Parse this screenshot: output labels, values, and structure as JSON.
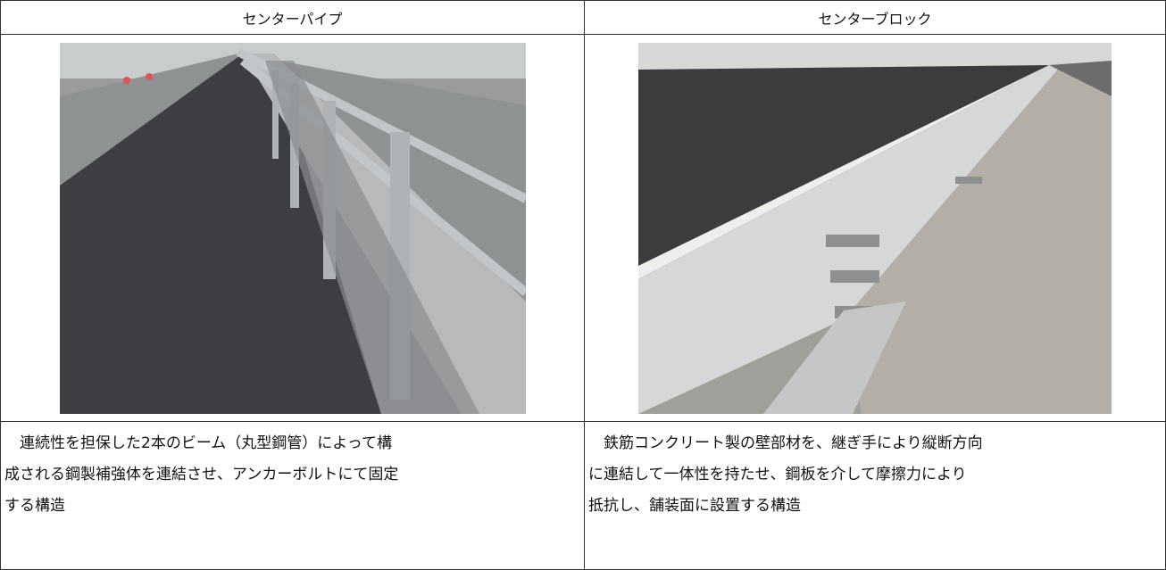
{
  "table": {
    "headers": [
      "センターパイプ",
      "センターブロック"
    ],
    "descriptions": [
      [
        "連続性を担保した2本のビーム（丸型鋼管）によって構",
        "成される鋼製補強体を連結させ、アンカーボルトにて固定",
        "する構造"
      ],
      [
        "鉄筋コンクリート製の壁部材を、継ぎ手により縦断方向",
        "に連結して一体性を持たせ、鋼板を介して摩擦力により",
        "抵抗し、舗装面に設置する構造"
      ]
    ]
  }
}
